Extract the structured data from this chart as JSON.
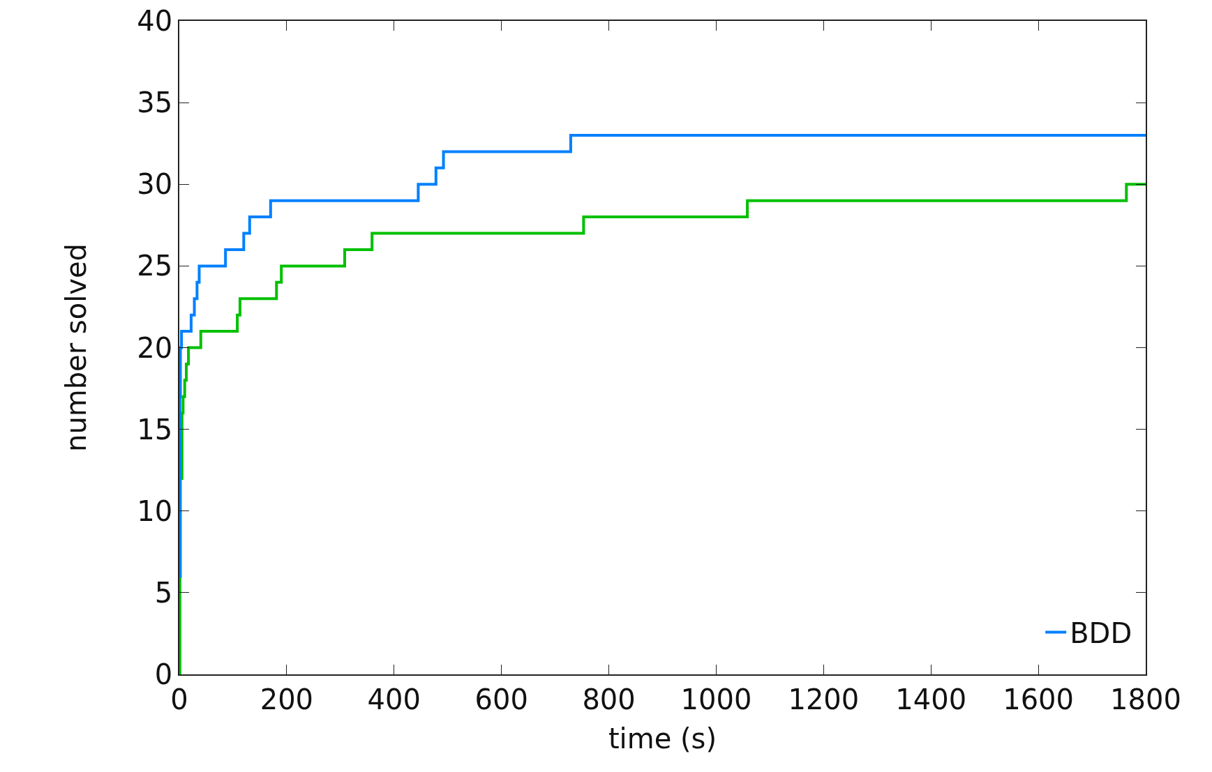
{
  "chart_data": {
    "type": "step",
    "xlabel": "time (s)",
    "ylabel": "number solved",
    "xlim": [
      0,
      1800
    ],
    "xticks": [
      0,
      200,
      400,
      600,
      800,
      1000,
      1200,
      1400,
      1600,
      1800
    ],
    "ylim": [
      0,
      40
    ],
    "yticks": [
      0,
      5,
      10,
      15,
      20,
      25,
      30,
      35,
      40
    ],
    "grid": false,
    "legend": "bottom right",
    "series": [
      {
        "name": "BDD",
        "color": "#0080ff",
        "x": [
          0,
          1,
          2,
          4,
          22,
          28,
          33,
          37,
          86,
          120,
          131,
          170,
          445,
          478,
          492,
          729,
          1800
        ],
        "values": [
          6,
          17,
          20,
          21,
          22,
          23,
          24,
          25,
          26,
          27,
          28,
          29,
          30,
          31,
          32,
          33,
          33
        ]
      },
      {
        "color": "#00c000",
        "x": [
          0,
          1,
          2,
          5,
          7,
          10,
          13,
          17,
          40,
          108,
          113,
          181,
          190,
          308,
          359,
          753,
          1058,
          1764,
          1800
        ],
        "values": [
          0,
          6,
          12,
          16,
          17,
          18,
          19,
          20,
          21,
          22,
          23,
          24,
          25,
          26,
          27,
          28,
          29,
          30,
          30
        ]
      }
    ]
  }
}
